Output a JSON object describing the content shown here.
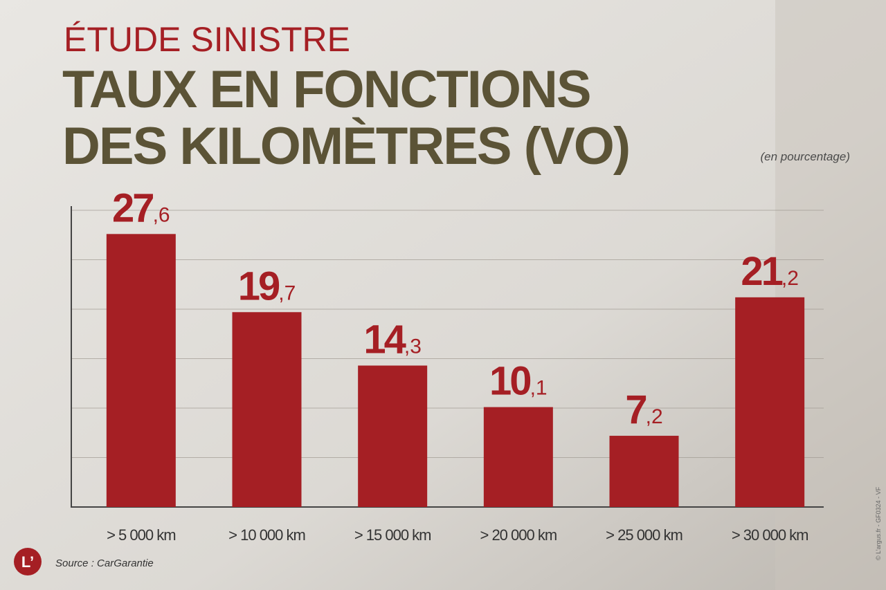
{
  "chart_data": {
    "type": "bar",
    "kicker": "ÉTUDE SINISTRE",
    "title_lines": [
      "TAUX EN FONCTIONS",
      "DES KILOMÈTRES (VO)"
    ],
    "unit_label": "(en pourcentage)",
    "categories": [
      "> 5 000 km",
      "> 10 000 km",
      "> 15 000 km",
      "> 20 000 km",
      "> 25 000 km",
      "> 30 000 km"
    ],
    "values": [
      27.6,
      19.7,
      14.3,
      10.1,
      7.2,
      21.2
    ],
    "value_labels": [
      "27,6",
      "19,7",
      "14,3",
      "10,1",
      "7,2",
      "21,2"
    ],
    "color": "#a51f24",
    "ylim": [
      0,
      30
    ],
    "yticks": [
      0,
      5,
      10,
      15,
      20,
      25,
      30
    ],
    "grid": true,
    "source": "Source : CarGarantie",
    "logo": "L’",
    "credit": "© L’argus.fr - GF0324 - VF"
  }
}
